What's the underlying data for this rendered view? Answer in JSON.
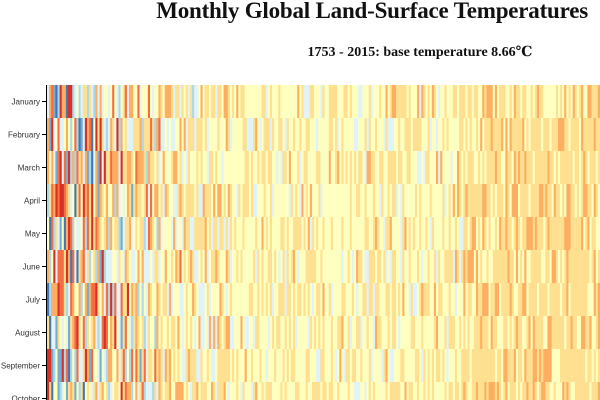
{
  "title": "Monthly Global Land-Surface Temperatures",
  "subtitle": "1753 - 2015: base temperature 8.66℃",
  "chart_data": {
    "type": "heatmap",
    "title": "Monthly Global Land-Surface Temperatures",
    "subtitle": "1753 - 2015: base temperature 8.66℃",
    "base_temperature": 8.66,
    "x_range": [
      1753,
      2015
    ],
    "y_categories": [
      "January",
      "February",
      "March",
      "April",
      "May",
      "June",
      "July",
      "August",
      "September",
      "October"
    ],
    "colors": {
      "very_cold": "#4575b4",
      "cold": "#74add1",
      "cool": "#abd9e9",
      "slightly_cool": "#e0f3f8",
      "neutral": "#ffffbf",
      "mild": "#fee090",
      "warm": "#fdae61",
      "hot": "#f46d43",
      "very_hot": "#d73027"
    }
  }
}
